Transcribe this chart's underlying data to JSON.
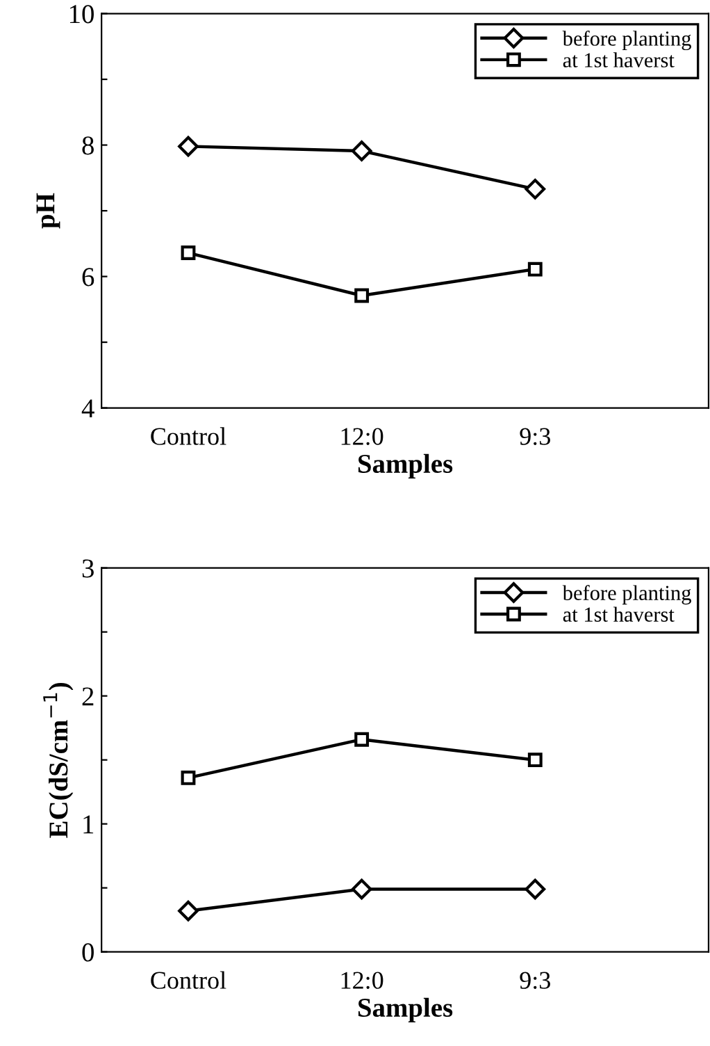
{
  "chart_data": [
    {
      "type": "line",
      "xlabel": "Samples",
      "ylabel": "pH",
      "categories": [
        "Control",
        "12:0",
        "9:3"
      ],
      "ylim": [
        4,
        10
      ],
      "yticks": [
        4,
        {
          "value": 5,
          "label": null
        },
        6,
        {
          "value": 7,
          "label": null
        },
        8,
        {
          "value": 9,
          "label": null
        },
        10
      ],
      "legend": "top right",
      "series": [
        {
          "name": "before planting",
          "color": "#000000",
          "marker": "diamond",
          "values": [
            7.98,
            7.91,
            7.33
          ]
        },
        {
          "name": "at 1st haverst",
          "color": "#000000",
          "marker": "square",
          "values": [
            6.36,
            5.71,
            6.11
          ]
        }
      ]
    },
    {
      "type": "line",
      "xlabel": "Samples",
      "ylabel": "EC(dS/cm$^{−1}$)",
      "categories": [
        "Control",
        "12:0",
        "9:3"
      ],
      "ylim": [
        0,
        3
      ],
      "yticks": [
        0,
        {
          "value": 0.5,
          "label": null
        },
        1,
        {
          "value": 1.5,
          "label": null
        },
        2,
        {
          "value": 2.5,
          "label": null
        },
        3
      ],
      "legend": "top right",
      "series": [
        {
          "name": "before planting",
          "color": "#000000",
          "marker": "diamond",
          "values": [
            0.32,
            0.49,
            0.49
          ]
        },
        {
          "name": "at 1st haverst",
          "color": "#000000",
          "marker": "square",
          "values": [
            1.36,
            1.66,
            1.5
          ]
        }
      ]
    }
  ]
}
